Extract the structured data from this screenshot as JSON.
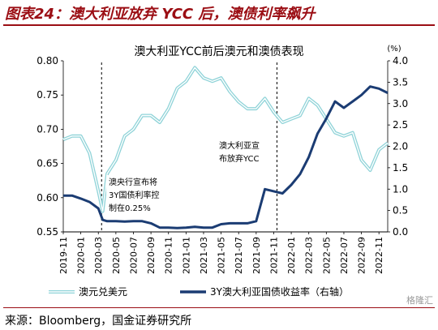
{
  "figure_title": "图表24：澳大利亚放弃 YCC 后，澳债利率飙升",
  "source_note": "来源：Bloomberg，国金证券研究所",
  "watermark": "格隆汇",
  "colors": {
    "aud": "#8fd3d8",
    "aud_inner": "#ffffff",
    "bond": "#1b3c73",
    "title_red": "#9b0e14"
  },
  "chart_data": {
    "type": "line",
    "title": "澳大利亚YCC前后澳元和澳债表现",
    "right_unit": "(%)",
    "x_ticks": [
      "2019-11",
      "2020-01",
      "2020-03",
      "2020-05",
      "2020-07",
      "2020-09",
      "2020-11",
      "2021-01",
      "2021-03",
      "2021-05",
      "2021-07",
      "2021-09",
      "2021-11",
      "2022-01",
      "2022-03",
      "2022-05",
      "2022-07",
      "2022-09",
      "2022-11"
    ],
    "xlim": [
      "2019-11",
      "2022-12"
    ],
    "left_axis": {
      "ylim": [
        0.55,
        0.8
      ],
      "ticks": [
        "0.55",
        "0.60",
        "0.65",
        "0.70",
        "0.75",
        "0.80"
      ]
    },
    "right_axis": {
      "ylim": [
        0.0,
        4.0
      ],
      "ticks": [
        "0.0",
        "0.5",
        "1.0",
        "1.5",
        "2.0",
        "2.5",
        "3.0",
        "3.5",
        "4.0"
      ]
    },
    "series": [
      {
        "name": "澳元兑美元",
        "axis": "left",
        "style": "double-line",
        "x": [
          "2019-11",
          "2019-12",
          "2020-01",
          "2020-02",
          "2020-03",
          "2020-03",
          "2020-04",
          "2020-05",
          "2020-06",
          "2020-07",
          "2020-08",
          "2020-09",
          "2020-10",
          "2020-11",
          "2020-12",
          "2021-01",
          "2021-02",
          "2021-03",
          "2021-04",
          "2021-05",
          "2021-06",
          "2021-07",
          "2021-08",
          "2021-09",
          "2021-10",
          "2021-11",
          "2021-12",
          "2022-01",
          "2022-02",
          "2022-03",
          "2022-04",
          "2022-05",
          "2022-06",
          "2022-07",
          "2022-08",
          "2022-09",
          "2022-10",
          "2022-11",
          "2022-12"
        ],
        "values": [
          0.685,
          0.69,
          0.69,
          0.665,
          0.61,
          0.58,
          0.635,
          0.655,
          0.69,
          0.7,
          0.72,
          0.72,
          0.71,
          0.73,
          0.76,
          0.77,
          0.79,
          0.775,
          0.77,
          0.775,
          0.755,
          0.74,
          0.73,
          0.73,
          0.745,
          0.725,
          0.71,
          0.715,
          0.72,
          0.745,
          0.735,
          0.715,
          0.695,
          0.69,
          0.695,
          0.655,
          0.64,
          0.67,
          0.68
        ]
      },
      {
        "name": "3Y澳大利亚国债收益率（右轴）",
        "axis": "right",
        "x": [
          "2019-11",
          "2019-12",
          "2020-01",
          "2020-02",
          "2020-03",
          "2020-03",
          "2020-04",
          "2020-05",
          "2020-06",
          "2020-07",
          "2020-08",
          "2020-09",
          "2020-10",
          "2020-11",
          "2020-12",
          "2021-01",
          "2021-02",
          "2021-03",
          "2021-04",
          "2021-05",
          "2021-06",
          "2021-07",
          "2021-08",
          "2021-09",
          "2021-10",
          "2021-11",
          "2021-12",
          "2022-01",
          "2022-02",
          "2022-03",
          "2022-04",
          "2022-05",
          "2022-06",
          "2022-07",
          "2022-08",
          "2022-09",
          "2022-10",
          "2022-11",
          "2022-12"
        ],
        "values": [
          0.85,
          0.85,
          0.78,
          0.7,
          0.55,
          0.28,
          0.25,
          0.25,
          0.24,
          0.25,
          0.25,
          0.2,
          0.1,
          0.1,
          0.09,
          0.1,
          0.12,
          0.1,
          0.1,
          0.18,
          0.2,
          0.2,
          0.2,
          0.25,
          1.0,
          0.95,
          0.9,
          1.1,
          1.35,
          1.75,
          2.3,
          2.65,
          3.05,
          2.9,
          3.05,
          3.2,
          3.4,
          3.35,
          3.25
        ]
      }
    ],
    "annotations": [
      {
        "x": "2020-03",
        "lines": [
          "澳央行宣布将",
          "3Y国债利率控",
          "制在0.25%"
        ]
      },
      {
        "x": "2021-11",
        "lines": [
          "澳大利亚宣",
          "布放弃YCC"
        ]
      }
    ],
    "legend": {
      "position": "bottom"
    }
  }
}
